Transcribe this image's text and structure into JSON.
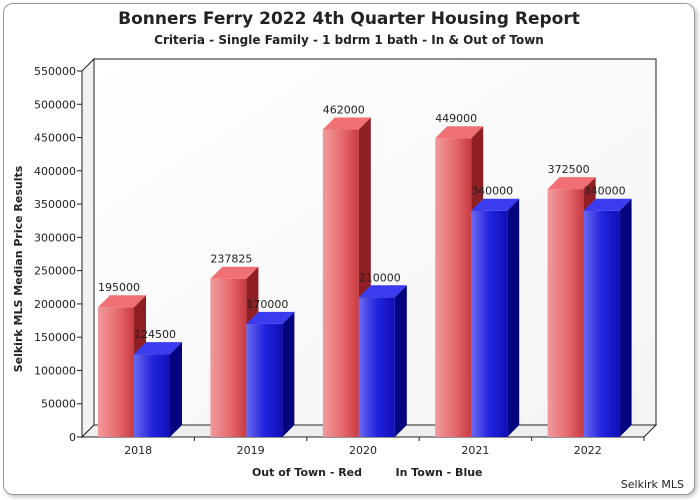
{
  "chart_data": {
    "type": "bar",
    "title": "Bonners Ferry 2022 4th Quarter Housing Report",
    "subtitle": "Criteria - Single Family - 1 bdrm 1 bath - In & Out of Town",
    "ylabel": "Selkirk MLS Median Price Results",
    "xnote_left": "Out of Town - Red",
    "xnote_right": "In Town - Blue",
    "credit": "Selkirk MLS",
    "categories": [
      "2018",
      "2019",
      "2020",
      "2021",
      "2022"
    ],
    "series": [
      {
        "name": "Out of Town - Red",
        "values": [
          195000,
          237825,
          462000,
          449000,
          372500
        ],
        "color": "#e0474c"
      },
      {
        "name": "In Town - Blue",
        "values": [
          124500,
          170000,
          210000,
          340000,
          340000
        ],
        "color": "#1a1adb"
      }
    ],
    "ylim": [
      0,
      550000
    ],
    "yticks": [
      0,
      50000,
      100000,
      150000,
      200000,
      250000,
      300000,
      350000,
      400000,
      450000,
      500000,
      550000
    ],
    "grid": false,
    "legend": "below x-axis"
  }
}
